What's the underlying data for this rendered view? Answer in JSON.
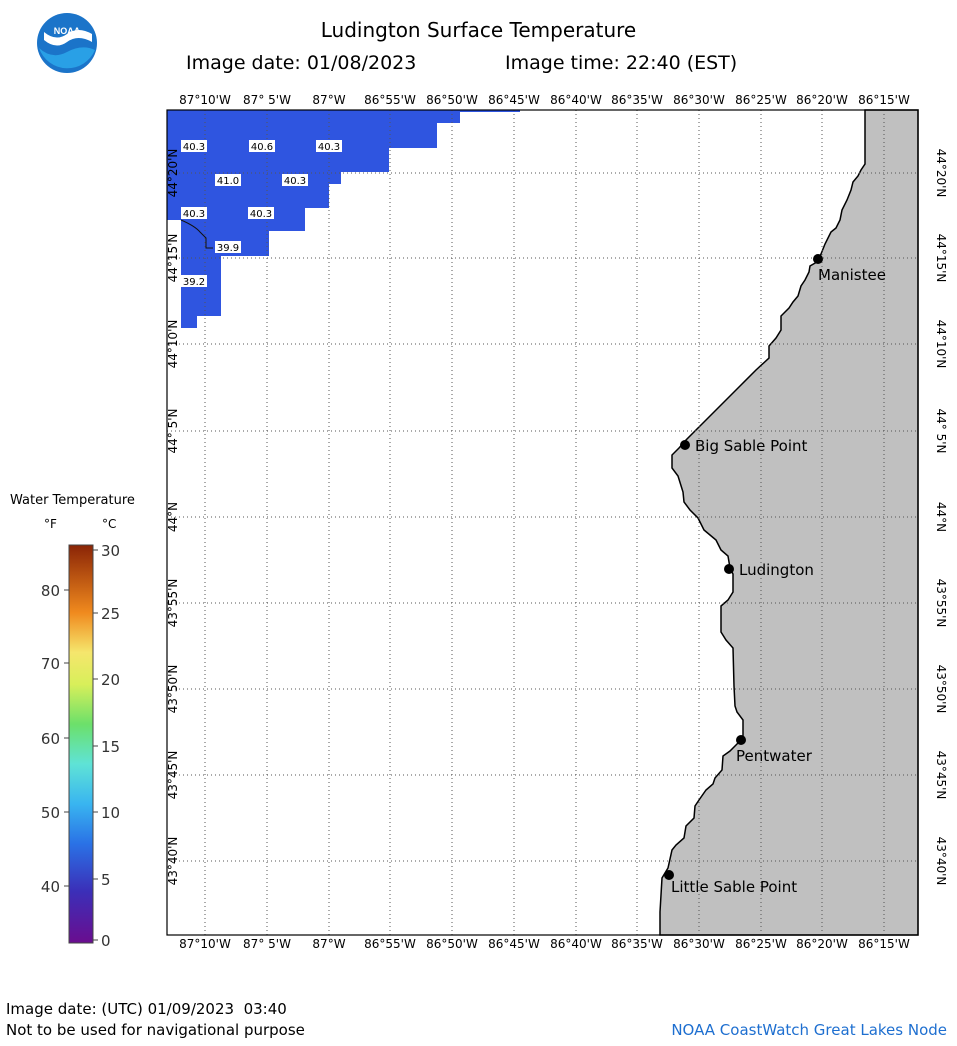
{
  "title": "Ludington Surface Temperature",
  "image_date": "Image date: 01/08/2023",
  "image_time": "Image time: 22:40 (EST)",
  "logo": {
    "icon": "noaa-logo-icon",
    "text": "NOAA"
  },
  "lon_labels": [
    "87°10'W",
    "87° 5'W",
    "87°W",
    "86°55'W",
    "86°50'W",
    "86°45'W",
    "86°40'W",
    "86°35'W",
    "86°30'W",
    "86°25'W",
    "86°20'W",
    "86°15'W"
  ],
  "lat_labels": [
    "44°20'N",
    "44°15'N",
    "44°10'N",
    "44° 5'N",
    "44°N",
    "43°55'N",
    "43°50'N",
    "43°45'N",
    "43°40'N"
  ],
  "temp_labels": [
    "40.3",
    "40.6",
    "40.3",
    "41.0",
    "40.3",
    "40.3",
    "40.3",
    "39.9",
    "39.2"
  ],
  "places": [
    "Manistee",
    "Big Sable Point",
    "Ludington",
    "Pentwater",
    "Little Sable Point"
  ],
  "legend": {
    "title": "Water Temperature",
    "unit_f": "°F",
    "unit_c": "°C",
    "f_ticks": [
      "80",
      "70",
      "60",
      "50",
      "40"
    ],
    "c_ticks": [
      "30",
      "25",
      "20",
      "15",
      "10",
      "5",
      "0"
    ]
  },
  "footer": {
    "utc": "Image date: (UTC) 01/09/2023  03:40",
    "nav": "Not to be used for navigational purpose",
    "credit": "NOAA CoastWatch Great Lakes Node"
  },
  "colors": {
    "water_temp": "#2f55e0",
    "land": "#c0c0c0",
    "credit": "#1e6fd0"
  }
}
